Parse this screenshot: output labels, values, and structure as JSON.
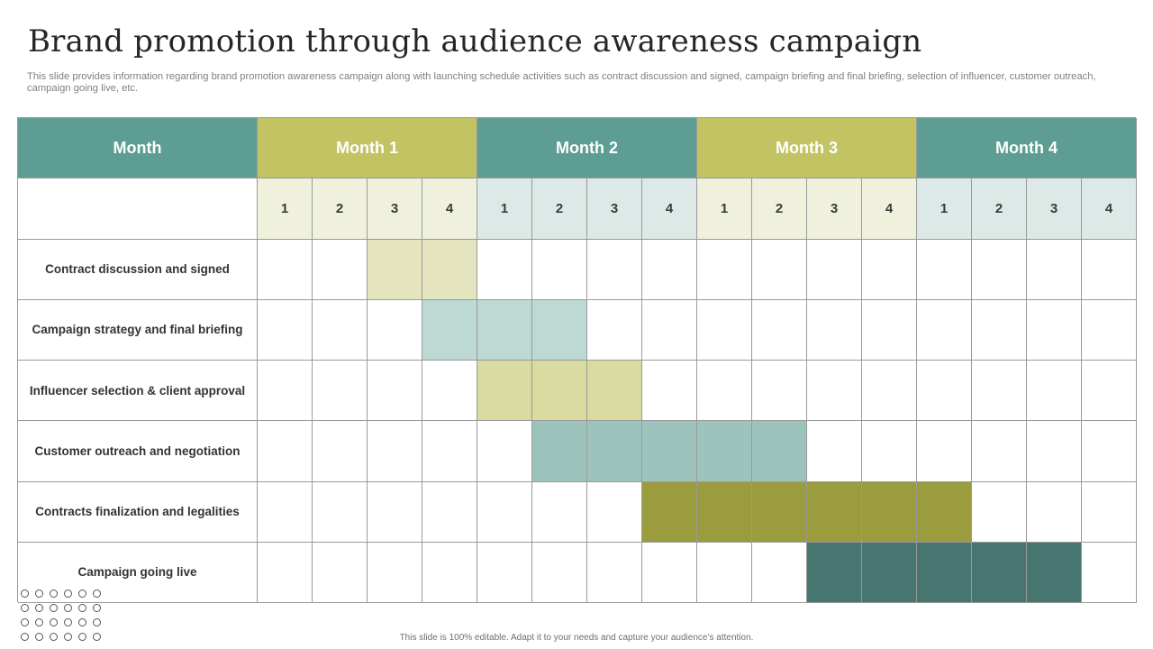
{
  "title": "Brand promotion through audience awareness campaign",
  "subtitle": "This slide provides information regarding brand promotion awareness campaign along with launching schedule activities such as contract discussion and signed, campaign briefing and final briefing, selection of influencer, customer outreach, campaign going live, etc.",
  "footer": "This slide is 100% editable. Adapt it to your needs and capture your audience’s attention.",
  "table": {
    "corner_header": "Month",
    "months": [
      {
        "label": "Month 1",
        "header_color": "#c2c363",
        "week_color": "#eff1dc"
      },
      {
        "label": "Month 2",
        "header_color": "#5e9d93",
        "week_color": "#dde9e6"
      },
      {
        "label": "Month 3",
        "header_color": "#c2c363",
        "week_color": "#eff1dc"
      },
      {
        "label": "Month 4",
        "header_color": "#5e9d93",
        "week_color": "#dde9e6"
      }
    ],
    "corner_header_color": "#5e9d93",
    "weeks": [
      "1",
      "2",
      "3",
      "4"
    ]
  },
  "tasks": [
    {
      "label": "Contract discussion  and signed",
      "start_week": 3,
      "end_week": 4,
      "color": "#e4e5bf"
    },
    {
      "label": "Campaign strategy and final briefing",
      "start_week": 4,
      "end_week": 6,
      "color": "#bcd9d3"
    },
    {
      "label": "Influencer selection & client approval",
      "start_week": 5,
      "end_week": 7,
      "color": "#d9dba1"
    },
    {
      "label": "Customer outreach and negotiation",
      "start_week": 6,
      "end_week": 10,
      "color": "#9cc4bd"
    },
    {
      "label": "Contracts  finalization and legalities",
      "start_week": 8,
      "end_week": 13,
      "color": "#9b9c3d"
    },
    {
      "label": "Campaign going live",
      "start_week": 11,
      "end_week": 15,
      "color": "#477670"
    }
  ]
}
